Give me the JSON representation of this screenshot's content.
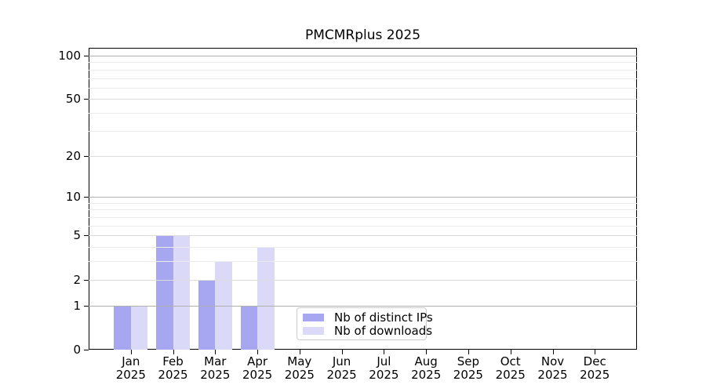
{
  "chart_data": {
    "type": "bar",
    "title": "PMCMRplus 2025",
    "categories": [
      "Jan",
      "Feb",
      "Mar",
      "Apr",
      "May",
      "Jun",
      "Jul",
      "Aug",
      "Sep",
      "Oct",
      "Nov",
      "Dec"
    ],
    "x_sublabel": "2025",
    "series": [
      {
        "name": "Nb of distinct IPs",
        "color": "#a7a7f1",
        "values": [
          1,
          5,
          2,
          1,
          0,
          0,
          0,
          0,
          0,
          0,
          0,
          0
        ]
      },
      {
        "name": "Nb of downloads",
        "color": "#dadaf8",
        "values": [
          1,
          5,
          3,
          4,
          0,
          0,
          0,
          0,
          0,
          0,
          0,
          0
        ]
      }
    ],
    "yscale": "log1p",
    "ylim": [
      0,
      113
    ],
    "yticks": [
      0,
      1,
      2,
      5,
      10,
      20,
      50,
      100
    ],
    "yticks_minor": [
      3,
      4,
      6,
      7,
      8,
      9,
      30,
      40,
      60,
      70,
      80,
      90
    ],
    "grid": "horizontal",
    "legend": {
      "position": "inside-bottom-center",
      "entries": [
        "Nb of distinct IPs",
        "Nb of downloads"
      ]
    },
    "colors": {
      "grid_decade": "#b0b0b0",
      "grid_submajor": "#dcdcdc",
      "grid_minor": "#ebebeb",
      "spine": "#000000"
    }
  }
}
